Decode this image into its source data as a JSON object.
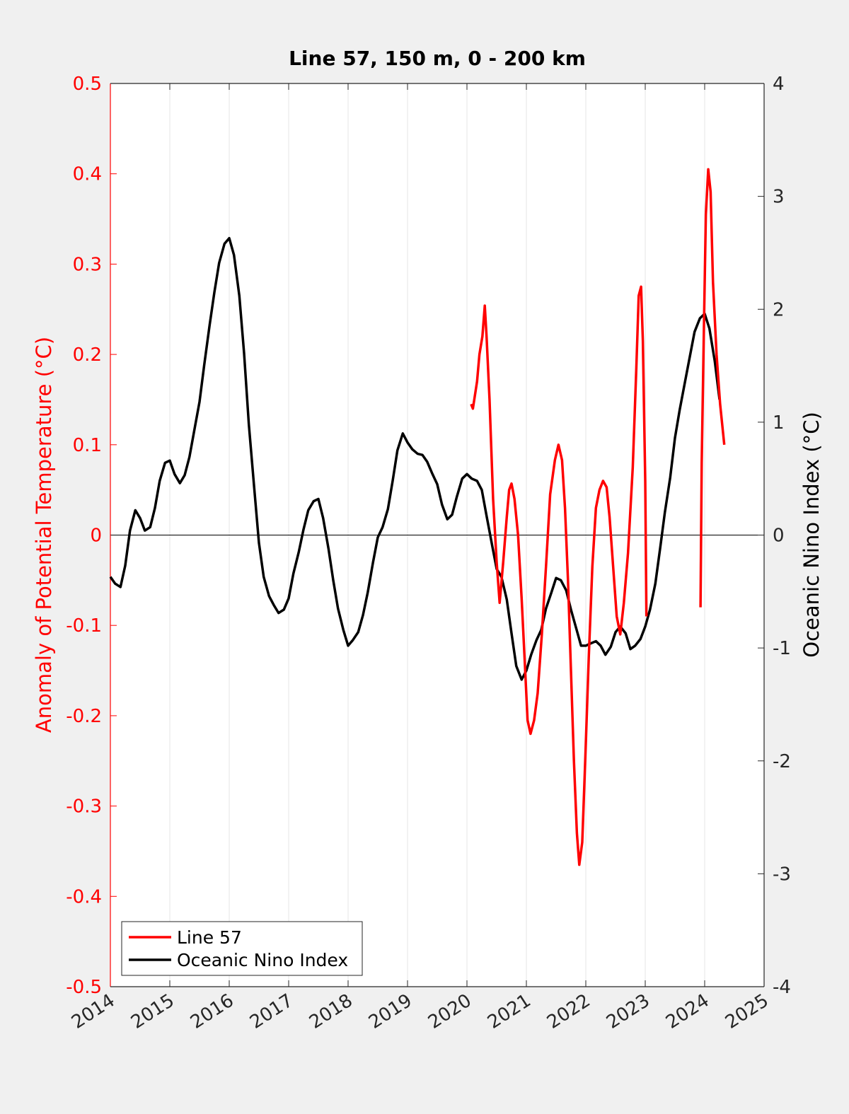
{
  "chart_data": {
    "type": "line",
    "title": "Line 57, 150 m, 0 - 200 km",
    "y_label": "Anomaly of Potential Temperature (°C)",
    "y2_label": "Oceanic Nino Index (°C)",
    "xlim": [
      2014,
      2025
    ],
    "xticks": [
      2014,
      2015,
      2016,
      2017,
      2018,
      2019,
      2020,
      2021,
      2022,
      2023,
      2024,
      2025
    ],
    "ylim": [
      -0.5,
      0.5
    ],
    "yticks": [
      -0.5,
      -0.4,
      -0.3,
      -0.2,
      -0.1,
      0,
      0.1,
      0.2,
      0.3,
      0.4,
      0.5
    ],
    "y2lim": [
      -4,
      4
    ],
    "y2ticks": [
      -4,
      -3,
      -2,
      -1,
      0,
      1,
      2,
      3,
      4
    ],
    "y_axis_color": "#ff0000",
    "x_grid": true,
    "zero_line": true,
    "legend": "lower-left",
    "series": [
      {
        "name": "Line 57",
        "color": "#ff0000",
        "x": [
          2020.07,
          2020.1,
          2020.17,
          2020.21,
          2020.26,
          2020.3,
          2020.33,
          2020.38,
          2020.44,
          2020.5,
          2020.55,
          2020.61,
          2020.67,
          2020.71,
          2020.75,
          2020.8,
          2020.86,
          2020.92,
          2020.98,
          2021.02,
          2021.07,
          2021.13,
          2021.19,
          2021.26,
          2021.33,
          2021.4,
          2021.48,
          2021.54,
          2021.6,
          2021.65,
          2021.7,
          2021.75,
          2021.8,
          2021.85,
          2021.89,
          2021.94,
          2021.99,
          2022.05,
          2022.11,
          2022.17,
          2022.23,
          2022.29,
          2022.35,
          2022.4,
          2022.46,
          2022.52,
          2022.58,
          2022.64,
          2022.71,
          2022.79,
          2022.85,
          2022.89,
          2022.93,
          2022.96,
          2023.0,
          2023.02,
          2023.5,
          2023.93,
          2023.95,
          2023.99,
          2024.02,
          2024.06,
          2024.1,
          2024.14,
          2024.2,
          2024.26,
          2024.33
        ],
        "values": [
          0.145,
          0.14,
          0.17,
          0.2,
          0.22,
          0.254,
          0.22,
          0.15,
          0.04,
          -0.03,
          -0.075,
          -0.03,
          0.02,
          0.05,
          0.057,
          0.04,
          0.0,
          -0.07,
          -0.15,
          -0.205,
          -0.22,
          -0.205,
          -0.175,
          -0.11,
          -0.035,
          0.045,
          0.083,
          0.1,
          0.083,
          0.03,
          -0.05,
          -0.15,
          -0.25,
          -0.33,
          -0.365,
          -0.34,
          -0.25,
          -0.135,
          -0.035,
          0.03,
          0.05,
          0.06,
          0.053,
          0.02,
          -0.035,
          -0.09,
          -0.11,
          -0.075,
          -0.02,
          0.075,
          0.185,
          0.265,
          0.275,
          0.215,
          0.06,
          -0.09,
          null,
          -0.08,
          0.08,
          0.24,
          0.355,
          0.405,
          0.38,
          0.28,
          0.2,
          0.145,
          0.1
        ]
      },
      {
        "name": "Oceanic Nino Index",
        "color": "#000000",
        "axis": "y2",
        "x": [
          2014.0,
          2014.08,
          2014.17,
          2014.25,
          2014.33,
          2014.42,
          2014.5,
          2014.58,
          2014.67,
          2014.75,
          2014.83,
          2014.92,
          2015.0,
          2015.08,
          2015.17,
          2015.25,
          2015.33,
          2015.42,
          2015.5,
          2015.58,
          2015.67,
          2015.75,
          2015.83,
          2015.92,
          2016.0,
          2016.08,
          2016.17,
          2016.25,
          2016.33,
          2016.42,
          2016.5,
          2016.58,
          2016.67,
          2016.75,
          2016.83,
          2016.92,
          2017.0,
          2017.08,
          2017.17,
          2017.25,
          2017.33,
          2017.42,
          2017.5,
          2017.58,
          2017.67,
          2017.75,
          2017.83,
          2017.92,
          2018.0,
          2018.08,
          2018.17,
          2018.25,
          2018.33,
          2018.42,
          2018.5,
          2018.58,
          2018.67,
          2018.75,
          2018.83,
          2018.92,
          2019.0,
          2019.08,
          2019.17,
          2019.25,
          2019.33,
          2019.42,
          2019.5,
          2019.58,
          2019.67,
          2019.75,
          2019.83,
          2019.92,
          2020.0,
          2020.08,
          2020.17,
          2020.25,
          2020.33,
          2020.42,
          2020.5,
          2020.58,
          2020.67,
          2020.75,
          2020.83,
          2020.92,
          2021.0,
          2021.08,
          2021.17,
          2021.25,
          2021.33,
          2021.42,
          2021.5,
          2021.58,
          2021.67,
          2021.75,
          2021.83,
          2021.92,
          2022.0,
          2022.08,
          2022.17,
          2022.25,
          2022.33,
          2022.42,
          2022.5,
          2022.58,
          2022.67,
          2022.75,
          2022.83,
          2022.92,
          2023.0,
          2023.08,
          2023.17,
          2023.25,
          2023.33,
          2023.42,
          2023.5,
          2023.58,
          2023.67,
          2023.75,
          2023.83,
          2023.92,
          2024.0,
          2024.08,
          2024.17,
          2024.25
        ],
        "values": [
          -0.37,
          -0.43,
          -0.46,
          -0.27,
          0.04,
          0.22,
          0.15,
          0.04,
          0.07,
          0.24,
          0.48,
          0.64,
          0.66,
          0.54,
          0.46,
          0.53,
          0.69,
          0.95,
          1.18,
          1.51,
          1.86,
          2.15,
          2.41,
          2.58,
          2.63,
          2.48,
          2.12,
          1.61,
          0.98,
          0.42,
          -0.07,
          -0.37,
          -0.54,
          -0.62,
          -0.69,
          -0.66,
          -0.56,
          -0.34,
          -0.15,
          0.05,
          0.22,
          0.3,
          0.32,
          0.15,
          -0.12,
          -0.4,
          -0.65,
          -0.84,
          -0.98,
          -0.93,
          -0.86,
          -0.71,
          -0.51,
          -0.24,
          -0.02,
          0.07,
          0.23,
          0.48,
          0.75,
          0.9,
          0.82,
          0.76,
          0.72,
          0.71,
          0.65,
          0.54,
          0.45,
          0.27,
          0.14,
          0.18,
          0.34,
          0.5,
          0.54,
          0.5,
          0.48,
          0.4,
          0.17,
          -0.08,
          -0.3,
          -0.37,
          -0.57,
          -0.87,
          -1.16,
          -1.28,
          -1.2,
          -1.06,
          -0.93,
          -0.84,
          -0.65,
          -0.51,
          -0.38,
          -0.4,
          -0.49,
          -0.66,
          -0.81,
          -0.98,
          -0.98,
          -0.96,
          -0.94,
          -0.98,
          -1.06,
          -0.99,
          -0.86,
          -0.81,
          -0.87,
          -1.01,
          -0.98,
          -0.92,
          -0.81,
          -0.66,
          -0.43,
          -0.12,
          0.2,
          0.51,
          0.86,
          1.11,
          1.36,
          1.58,
          1.8,
          1.92,
          1.96,
          1.83,
          1.54,
          1.2
        ]
      }
    ]
  }
}
